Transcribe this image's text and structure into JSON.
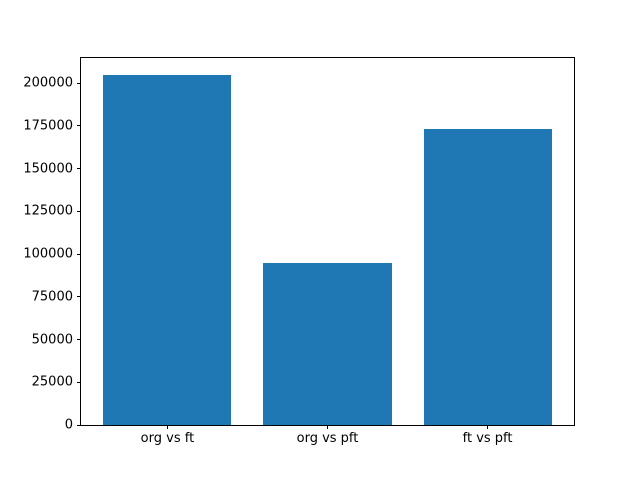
{
  "chart_data": {
    "type": "bar",
    "title": "",
    "xlabel": "",
    "ylabel": "",
    "categories": [
      "org vs ft",
      "org vs pft",
      "ft vs pft"
    ],
    "values": [
      204500,
      95000,
      173000
    ],
    "yticks": [
      0,
      25000,
      50000,
      75000,
      100000,
      125000,
      150000,
      175000,
      200000
    ],
    "ylim": [
      0,
      214725
    ],
    "bar_width_fraction": 0.8,
    "bar_color": "#1f77b4",
    "axis_color": "#000000",
    "background_color": "#ffffff",
    "grid": false,
    "legend": "none"
  }
}
